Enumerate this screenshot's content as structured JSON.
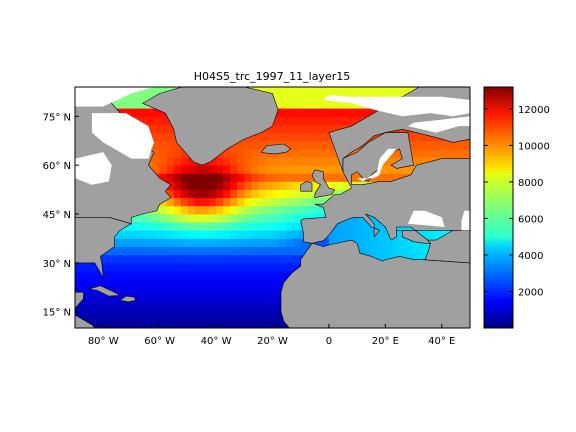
{
  "figure": {
    "title": "H04S5_trc_1997_11_layer15"
  },
  "map": {
    "lon_range": [
      -90,
      50
    ],
    "lat_range": [
      10,
      84
    ],
    "land_color": "#a0a0a0",
    "nodata_color": "#ffffff",
    "coast_color": "#000000",
    "lat_ticks": [
      {
        "value": 15,
        "label": "15° N"
      },
      {
        "value": 30,
        "label": "30° N"
      },
      {
        "value": 45,
        "label": "45° N"
      },
      {
        "value": 60,
        "label": "60° N"
      },
      {
        "value": 75,
        "label": "75° N"
      }
    ],
    "lon_ticks": [
      {
        "value": -80,
        "label": "80° W"
      },
      {
        "value": -60,
        "label": "60° W"
      },
      {
        "value": -40,
        "label": "40° W"
      },
      {
        "value": -20,
        "label": "20° W"
      },
      {
        "value": 0,
        "label": "0"
      },
      {
        "value": 20,
        "label": "20° E"
      },
      {
        "value": 40,
        "label": "40° E"
      }
    ]
  },
  "colorbar": {
    "min": 0,
    "max": 13200,
    "colormap": "jet",
    "ticks": [
      2000,
      4000,
      6000,
      8000,
      10000,
      12000
    ],
    "tick_labels": [
      "2000",
      "4000",
      "6000",
      "8000",
      "10000",
      "12000"
    ]
  }
}
